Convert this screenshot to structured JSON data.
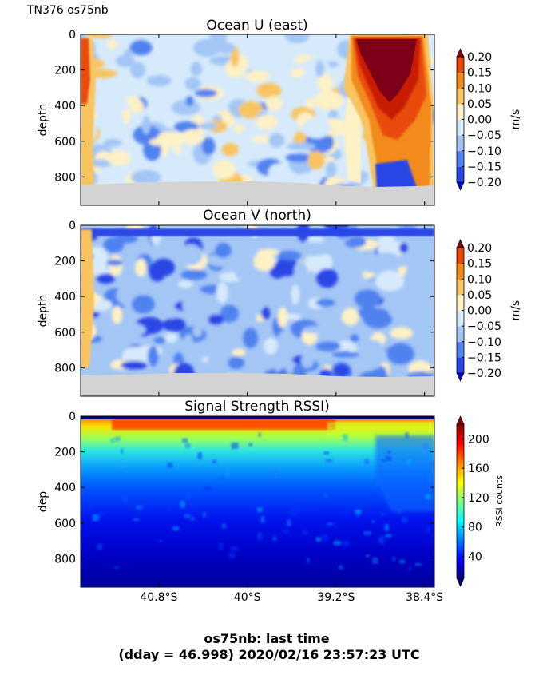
{
  "figure": {
    "corner_label": "TN376 os75nb",
    "footer_line1": "os75nb: last time",
    "footer_line2": "(dday = 46.998) 2020/02/16 23:57:23 UTC"
  },
  "chart_data": [
    {
      "type": "heatmap",
      "title": "Ocean U (east)",
      "ylabel": "depth",
      "yticks": [
        "0",
        "200",
        "400",
        "600",
        "800"
      ],
      "ylim": [
        0,
        960
      ],
      "y_inverted": true,
      "x_ticks_visible": false,
      "colorbar": {
        "label": "m/s",
        "ticks": [
          "0.20",
          "0.15",
          "0.10",
          "0.05",
          "0.00",
          "−0.05",
          "−0.10",
          "−0.15",
          "−0.20"
        ],
        "range": [
          -0.2,
          0.2
        ],
        "levels": [
          "#0b06c8",
          "#2a46e6",
          "#4f82ef",
          "#a3c6f5",
          "#d6eafb",
          "#fdf1c6",
          "#f8c45f",
          "#f28a1d",
          "#e94b0c",
          "#c81b06",
          "#7d0018"
        ]
      },
      "masked_below_depth_approx": 860
    },
    {
      "type": "heatmap",
      "title": "Ocean V (north)",
      "ylabel": "depth",
      "yticks": [
        "0",
        "200",
        "400",
        "600",
        "800"
      ],
      "ylim": [
        0,
        960
      ],
      "y_inverted": true,
      "x_ticks_visible": false,
      "colorbar": {
        "label": "m/s",
        "ticks": [
          "0.20",
          "0.15",
          "0.10",
          "0.05",
          "0.00",
          "−0.05",
          "−0.10",
          "−0.15",
          "−0.20"
        ],
        "range": [
          -0.2,
          0.2
        ],
        "levels": [
          "#0b06c8",
          "#2a46e6",
          "#4f82ef",
          "#a3c6f5",
          "#d6eafb",
          "#fdf1c6",
          "#f8c45f",
          "#f28a1d",
          "#e94b0c",
          "#c81b06",
          "#7d0018"
        ]
      },
      "masked_below_depth_approx": 860
    },
    {
      "type": "heatmap",
      "title": "Signal Strength RSSI)",
      "ylabel": "dep",
      "yticks": [
        "0",
        "200",
        "400",
        "600",
        "800"
      ],
      "ylim": [
        0,
        960
      ],
      "y_inverted": true,
      "xticks": [
        "40.8°S",
        "40°S",
        "39.2°S",
        "38.4°S"
      ],
      "colorbar": {
        "label": "RSSI counts",
        "ticks": [
          "200",
          "160",
          "120",
          "80",
          "40"
        ],
        "range": [
          10,
          220
        ],
        "colormap": "jet"
      },
      "depth_profile_rssi": [
        {
          "depth": 30,
          "value": 180
        },
        {
          "depth": 100,
          "value": 125
        },
        {
          "depth": 200,
          "value": 95
        },
        {
          "depth": 300,
          "value": 70
        },
        {
          "depth": 400,
          "value": 55
        },
        {
          "depth": 500,
          "value": 45
        },
        {
          "depth": 600,
          "value": 35
        },
        {
          "depth": 700,
          "value": 28
        },
        {
          "depth": 800,
          "value": 22
        },
        {
          "depth": 900,
          "value": 18
        }
      ]
    }
  ]
}
